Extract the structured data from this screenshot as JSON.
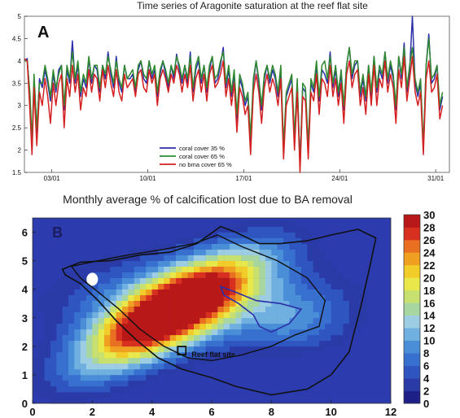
{
  "chart_data": [
    {
      "type": "line",
      "panel_label": "A",
      "title": "Time series of Aragonite saturation at the reef flat site",
      "xlabel": "",
      "ylabel": "",
      "ylim": [
        1.5,
        5
      ],
      "xlim": [
        0,
        31
      ],
      "x_tick_labels": [
        "03/01",
        "10/01",
        "17/01",
        "24/01",
        "31/01"
      ],
      "x_tick_values": [
        2,
        9,
        16,
        23,
        30
      ],
      "y_tick_labels": [
        "1.5",
        "2",
        "2.5",
        "3",
        "3.5",
        "4",
        "4.5",
        "5"
      ],
      "legend_position": "bottom-center",
      "series": [
        {
          "name": "coral cover 35 %",
          "color": "#2b2fa8",
          "x": [
            0,
            0.2,
            0.4,
            0.55,
            0.7,
            0.9,
            1.1,
            1.3,
            1.5,
            1.7,
            1.9,
            2.1,
            2.3,
            2.5,
            2.7,
            2.9,
            3.1,
            3.3,
            3.5,
            3.7,
            3.9,
            4.1,
            4.3,
            4.5,
            4.7,
            4.9,
            5.1,
            5.3,
            5.5,
            5.7,
            5.9,
            6.1,
            6.3,
            6.5,
            6.7,
            6.9,
            7.1,
            7.3,
            7.5,
            7.7,
            7.9,
            8.1,
            8.3,
            8.5,
            8.7,
            8.9,
            9.1,
            9.3,
            9.5,
            9.7,
            9.9,
            10.1,
            10.3,
            10.5,
            10.7,
            10.9,
            11.1,
            11.3,
            11.5,
            11.7,
            11.9,
            12.1,
            12.3,
            12.5,
            12.7,
            12.9,
            13.1,
            13.3,
            13.5,
            13.7,
            13.9,
            14.1,
            14.3,
            14.5,
            14.7,
            14.9,
            15.1,
            15.3,
            15.5,
            15.7,
            15.9,
            16.1,
            16.3,
            16.5,
            16.7,
            16.9,
            17.1,
            17.3,
            17.5,
            17.7,
            17.9,
            18.1,
            18.3,
            18.5,
            18.7,
            18.9,
            19.1,
            19.3,
            19.5,
            19.7,
            19.9,
            20.1,
            20.3,
            20.5,
            20.7,
            20.9,
            21.1,
            21.3,
            21.5,
            21.7,
            21.9,
            22.1,
            22.3,
            22.5,
            22.7,
            22.9,
            23.1,
            23.3,
            23.5,
            23.7,
            23.9,
            24.1,
            24.3,
            24.5,
            24.7,
            24.9,
            25.1,
            25.3,
            25.5,
            25.7,
            25.9,
            26.1,
            26.3,
            26.5,
            26.7,
            26.9,
            27.1,
            27.3,
            27.5,
            27.7,
            27.9,
            28.1,
            28.3,
            28.5,
            28.7,
            28.9,
            29.1,
            29.3,
            29.5,
            29.7,
            29.9,
            30.1,
            30.3,
            30.5
          ],
          "values": [
            4.0,
            4.05,
            3.2,
            2.0,
            3.6,
            2.4,
            3.6,
            3.4,
            3.8,
            3.5,
            3.1,
            3.7,
            3.3,
            3.8,
            3.9,
            2.9,
            3.8,
            3.5,
            4.45,
            3.5,
            3.9,
            3.2,
            3.6,
            3.4,
            4.05,
            3.5,
            3.9,
            3.8,
            3.3,
            3.9,
            3.6,
            4.2,
            3.7,
            3.4,
            4.1,
            3.5,
            3.3,
            3.9,
            3.6,
            3.6,
            3.7,
            3.3,
            3.8,
            4.0,
            3.6,
            3.5,
            4.0,
            3.6,
            3.8,
            3.2,
            3.7,
            4.0,
            3.7,
            3.4,
            3.9,
            3.6,
            4.15,
            3.8,
            3.5,
            3.9,
            3.5,
            4.2,
            3.3,
            3.8,
            4.0,
            3.5,
            3.9,
            3.3,
            3.8,
            4.1,
            3.5,
            3.6,
            3.9,
            4.3,
            3.4,
            3.8,
            3.2,
            3.7,
            2.6,
            3.6,
            3.4,
            3.0,
            3.2,
            2.2,
            3.5,
            4.0,
            3.5,
            2.9,
            3.6,
            3.9,
            3.5,
            3.8,
            3.6,
            3.2,
            3.8,
            2.0,
            3.2,
            3.4,
            3.6,
            2.2,
            3.5,
            1.7,
            3.4,
            3.3,
            2.0,
            3.5,
            3.3,
            3.9,
            3.1,
            3.8,
            3.7,
            3.5,
            4.2,
            3.4,
            3.8,
            3.2,
            3.7,
            2.9,
            3.9,
            4.3,
            3.6,
            3.9,
            4.0,
            3.2,
            3.6,
            3.1,
            3.9,
            3.2,
            4.1,
            3.3,
            3.8,
            3.6,
            4.2,
            3.5,
            3.9,
            3.6,
            2.9,
            4.1,
            3.6,
            4.4,
            3.3,
            3.8,
            5.0,
            3.5,
            3.2,
            3.5,
            2.0,
            3.9,
            4.6,
            3.5,
            3.6,
            3.9,
            2.9,
            3.2
          ]
        },
        {
          "name": "coral cover 65 %",
          "color": "#2f8a2f",
          "x": [
            0,
            0.2,
            0.4,
            0.55,
            0.7,
            0.9,
            1.1,
            1.3,
            1.5,
            1.7,
            1.9,
            2.1,
            2.3,
            2.5,
            2.7,
            2.9,
            3.1,
            3.3,
            3.5,
            3.7,
            3.9,
            4.1,
            4.3,
            4.5,
            4.7,
            4.9,
            5.1,
            5.3,
            5.5,
            5.7,
            5.9,
            6.1,
            6.3,
            6.5,
            6.7,
            6.9,
            7.1,
            7.3,
            7.5,
            7.7,
            7.9,
            8.1,
            8.3,
            8.5,
            8.7,
            8.9,
            9.1,
            9.3,
            9.5,
            9.7,
            9.9,
            10.1,
            10.3,
            10.5,
            10.7,
            10.9,
            11.1,
            11.3,
            11.5,
            11.7,
            11.9,
            12.1,
            12.3,
            12.5,
            12.7,
            12.9,
            13.1,
            13.3,
            13.5,
            13.7,
            13.9,
            14.1,
            14.3,
            14.5,
            14.7,
            14.9,
            15.1,
            15.3,
            15.5,
            15.7,
            15.9,
            16.1,
            16.3,
            16.5,
            16.7,
            16.9,
            17.1,
            17.3,
            17.5,
            17.7,
            17.9,
            18.1,
            18.3,
            18.5,
            18.7,
            18.9,
            19.1,
            19.3,
            19.5,
            19.7,
            19.9,
            20.1,
            20.3,
            20.5,
            20.7,
            20.9,
            21.1,
            21.3,
            21.5,
            21.7,
            21.9,
            22.1,
            22.3,
            22.5,
            22.7,
            22.9,
            23.1,
            23.3,
            23.5,
            23.7,
            23.9,
            24.1,
            24.3,
            24.5,
            24.7,
            24.9,
            25.1,
            25.3,
            25.5,
            25.7,
            25.9,
            26.1,
            26.3,
            26.5,
            26.7,
            26.9,
            27.1,
            27.3,
            27.5,
            27.7,
            27.9,
            28.1,
            28.3,
            28.5,
            28.7,
            28.9,
            29.1,
            29.3,
            29.5,
            29.7,
            29.9,
            30.1,
            30.3,
            30.5
          ],
          "values": [
            4.0,
            4.0,
            3.3,
            2.2,
            3.7,
            2.5,
            3.5,
            3.5,
            3.9,
            3.6,
            3.2,
            3.8,
            3.4,
            3.7,
            3.9,
            3.0,
            3.9,
            3.6,
            4.2,
            3.6,
            4.0,
            3.3,
            3.7,
            3.5,
            4.1,
            3.6,
            3.9,
            3.9,
            3.4,
            3.9,
            3.7,
            4.1,
            3.8,
            3.5,
            4.0,
            3.6,
            3.4,
            3.9,
            3.6,
            3.7,
            3.8,
            3.4,
            3.9,
            4.0,
            3.7,
            3.6,
            4.0,
            3.7,
            3.9,
            3.3,
            3.8,
            4.0,
            3.8,
            3.5,
            3.9,
            3.7,
            4.1,
            3.9,
            3.6,
            3.9,
            3.6,
            4.1,
            3.4,
            3.9,
            4.1,
            3.6,
            3.9,
            3.4,
            3.9,
            4.1,
            3.6,
            3.7,
            4.0,
            4.2,
            3.5,
            3.9,
            3.3,
            3.8,
            2.8,
            3.7,
            3.5,
            3.1,
            3.3,
            2.3,
            3.6,
            4.0,
            3.6,
            3.0,
            3.7,
            3.9,
            3.6,
            3.9,
            3.7,
            3.3,
            3.9,
            2.1,
            3.3,
            3.5,
            3.7,
            2.3,
            3.6,
            1.6,
            3.5,
            3.4,
            2.1,
            3.6,
            3.4,
            4.0,
            3.2,
            3.9,
            4.0,
            3.6,
            4.1,
            3.5,
            3.9,
            3.3,
            3.8,
            3.0,
            3.9,
            4.3,
            3.7,
            4.0,
            4.0,
            3.3,
            3.7,
            3.2,
            3.9,
            3.3,
            4.1,
            3.4,
            3.9,
            3.7,
            4.2,
            3.6,
            4.0,
            3.7,
            3.0,
            4.1,
            3.7,
            4.3,
            3.4,
            3.9,
            4.3,
            3.6,
            3.3,
            3.6,
            2.1,
            3.9,
            4.5,
            3.6,
            3.7,
            3.9,
            3.0,
            3.3
          ]
        },
        {
          "name": "no bma cover 65 %",
          "color": "#d42020",
          "x": [
            0,
            0.2,
            0.4,
            0.55,
            0.7,
            0.9,
            1.1,
            1.3,
            1.5,
            1.7,
            1.9,
            2.1,
            2.3,
            2.5,
            2.7,
            2.9,
            3.1,
            3.3,
            3.5,
            3.7,
            3.9,
            4.1,
            4.3,
            4.5,
            4.7,
            4.9,
            5.1,
            5.3,
            5.5,
            5.7,
            5.9,
            6.1,
            6.3,
            6.5,
            6.7,
            6.9,
            7.1,
            7.3,
            7.5,
            7.7,
            7.9,
            8.1,
            8.3,
            8.5,
            8.7,
            8.9,
            9.1,
            9.3,
            9.5,
            9.7,
            9.9,
            10.1,
            10.3,
            10.5,
            10.7,
            10.9,
            11.1,
            11.3,
            11.5,
            11.7,
            11.9,
            12.1,
            12.3,
            12.5,
            12.7,
            12.9,
            13.1,
            13.3,
            13.5,
            13.7,
            13.9,
            14.1,
            14.3,
            14.5,
            14.7,
            14.9,
            15.1,
            15.3,
            15.5,
            15.7,
            15.9,
            16.1,
            16.3,
            16.5,
            16.7,
            16.9,
            17.1,
            17.3,
            17.5,
            17.7,
            17.9,
            18.1,
            18.3,
            18.5,
            18.7,
            18.9,
            19.1,
            19.3,
            19.5,
            19.7,
            19.9,
            20.1,
            20.3,
            20.5,
            20.7,
            20.9,
            21.1,
            21.3,
            21.5,
            21.7,
            21.9,
            22.1,
            22.3,
            22.5,
            22.7,
            22.9,
            23.1,
            23.3,
            23.5,
            23.7,
            23.9,
            24.1,
            24.3,
            24.5,
            24.7,
            24.9,
            25.1,
            25.3,
            25.5,
            25.7,
            25.9,
            26.1,
            26.3,
            26.5,
            26.7,
            26.9,
            27.1,
            27.3,
            27.5,
            27.7,
            27.9,
            28.1,
            28.3,
            28.5,
            28.7,
            28.9,
            29.1,
            29.3,
            29.5,
            29.7,
            29.9,
            30.1,
            30.3,
            30.5
          ],
          "values": [
            4.05,
            4.0,
            2.9,
            1.9,
            3.4,
            2.1,
            3.3,
            3.0,
            3.6,
            3.2,
            2.6,
            3.5,
            3.0,
            3.5,
            3.7,
            2.5,
            3.6,
            3.2,
            3.9,
            3.3,
            3.7,
            2.9,
            3.4,
            3.2,
            3.8,
            3.3,
            3.7,
            3.6,
            3.1,
            3.8,
            3.4,
            3.9,
            3.5,
            3.2,
            3.8,
            3.3,
            3.1,
            3.7,
            3.4,
            3.5,
            3.6,
            3.2,
            3.7,
            3.8,
            3.4,
            3.3,
            3.8,
            3.5,
            3.7,
            3.0,
            3.6,
            3.8,
            3.6,
            3.3,
            3.7,
            3.5,
            3.9,
            3.7,
            3.3,
            3.7,
            3.4,
            3.9,
            3.1,
            3.6,
            3.8,
            3.3,
            3.7,
            3.1,
            3.7,
            3.9,
            3.4,
            3.5,
            3.7,
            4.0,
            3.2,
            3.6,
            3.0,
            3.5,
            2.4,
            3.4,
            3.2,
            2.8,
            3.0,
            1.9,
            3.3,
            3.7,
            3.3,
            2.6,
            3.4,
            3.7,
            3.3,
            3.6,
            3.4,
            3.0,
            3.6,
            1.8,
            3.0,
            3.2,
            3.4,
            2.0,
            3.3,
            1.5,
            3.2,
            3.1,
            1.8,
            3.3,
            3.1,
            3.7,
            2.8,
            3.6,
            3.5,
            3.2,
            3.9,
            3.2,
            3.6,
            3.0,
            3.5,
            2.6,
            3.7,
            4.0,
            3.4,
            3.7,
            3.8,
            3.0,
            3.4,
            2.8,
            3.7,
            3.0,
            3.9,
            3.0,
            3.6,
            3.4,
            4.0,
            3.3,
            3.7,
            3.4,
            2.6,
            3.8,
            3.4,
            4.1,
            3.1,
            3.6,
            4.1,
            3.3,
            3.0,
            3.3,
            1.9,
            3.6,
            4.0,
            3.3,
            3.4,
            3.7,
            2.7,
            3.0
          ]
        }
      ]
    },
    {
      "type": "heatmap",
      "panel_label": "B",
      "title": "Monthly average % of calcification lost due to BA removal",
      "xlabel": "",
      "ylabel": "",
      "xlim": [
        0,
        12
      ],
      "ylim": [
        0,
        6.5
      ],
      "x_tick_labels": [
        "0",
        "2",
        "4",
        "6",
        "8",
        "10",
        "12"
      ],
      "y_tick_labels": [
        "0",
        "1",
        "2",
        "3",
        "4",
        "5",
        "6"
      ],
      "colorbar_range": [
        0,
        30
      ],
      "colorbar_tick_labels": [
        "30",
        "28",
        "26",
        "24",
        "22",
        "20",
        "18",
        "16",
        "14",
        "12",
        "10",
        "8",
        "6",
        "4",
        "2",
        "0"
      ],
      "colorbar_colors": [
        "#1f1f88",
        "#2a3ba8",
        "#2f56c0",
        "#3870d0",
        "#4a8ed8",
        "#6fb0e0",
        "#9ccde3",
        "#a8d6a0",
        "#c8e070",
        "#e8e84a",
        "#f2cc28",
        "#f0a020",
        "#e87020",
        "#d83020",
        "#b81818"
      ],
      "annotation": "Reef flat site",
      "annotation_marker": [
        5.0,
        1.85
      ],
      "summary": {
        "peak_value": 30,
        "peak_region_center": [
          4.5,
          3.2
        ]
      }
    }
  ]
}
